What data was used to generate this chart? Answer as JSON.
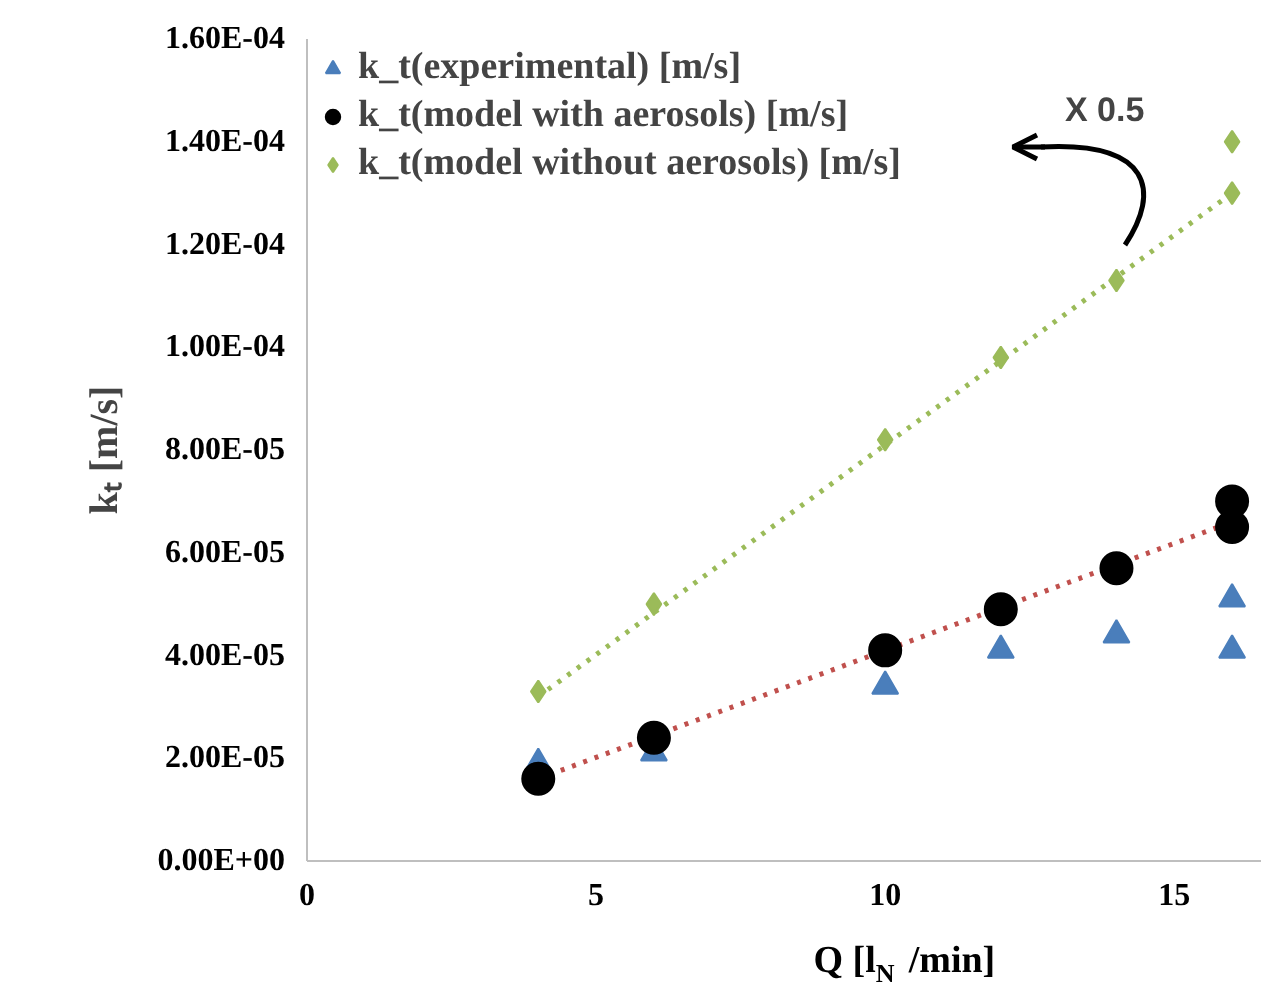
{
  "chart_data": {
    "type": "scatter",
    "xlabel": "Q [l$_{N}$ /min]",
    "ylabel": "kₜ [m/s]",
    "xlim": [
      0,
      16.5
    ],
    "xticks": [
      0,
      5,
      10,
      15
    ],
    "ylim": [
      0,
      0.00016
    ],
    "yticks": [
      {
        "value": 0,
        "label": "0.00E+00"
      },
      {
        "value": 2e-05,
        "label": "2.00E-05"
      },
      {
        "value": 4e-05,
        "label": "4.00E-05"
      },
      {
        "value": 6e-05,
        "label": "6.00E-05"
      },
      {
        "value": 8e-05,
        "label": "8.00E-05"
      },
      {
        "value": 0.0001,
        "label": "1.00E-04"
      },
      {
        "value": 0.00012,
        "label": "1.20E-04"
      },
      {
        "value": 0.00014,
        "label": "1.40E-04"
      },
      {
        "value": 0.00016,
        "label": "1.60E-04"
      }
    ],
    "grid": false,
    "legend": "top left",
    "annotations": [
      "X 0.5"
    ],
    "series": [
      {
        "type": "line",
        "color": "#c0504d",
        "line_style": "dotted",
        "marker": "none",
        "x": [
          4,
          16
        ],
        "values": [
          1.6e-05,
          6.6e-05
        ]
      },
      {
        "type": "line",
        "color": "#9bbb59",
        "line_style": "dotted",
        "marker": "none",
        "x": [
          4,
          16
        ],
        "values": [
          3.2e-05,
          0.00013
        ]
      },
      {
        "name": "k_t(experimental) [m/s]",
        "color": "#4a7ebb",
        "marker": "triangle",
        "x": [
          4,
          6,
          10,
          12,
          14,
          16,
          16
        ],
        "values": [
          1.9e-05,
          2.1e-05,
          3.4e-05,
          4.1e-05,
          4.4e-05,
          5.1e-05,
          4.1e-05
        ]
      },
      {
        "name": "k_t(model with aerosols) [m/s]",
        "color": "#000000",
        "marker": "circle",
        "x": [
          4,
          6,
          10,
          12,
          14,
          16,
          16
        ],
        "values": [
          1.6e-05,
          2.4e-05,
          4.1e-05,
          4.9e-05,
          5.7e-05,
          6.5e-05,
          7e-05
        ]
      },
      {
        "name": "k_t(model without aerosols) [m/s]",
        "color": "#9bbb59",
        "marker": "diamond",
        "x": [
          4,
          6,
          10,
          12,
          14,
          16,
          16
        ],
        "values": [
          3.3e-05,
          5e-05,
          8.2e-05,
          9.8e-05,
          0.000113,
          0.00013,
          0.00014
        ]
      }
    ]
  }
}
